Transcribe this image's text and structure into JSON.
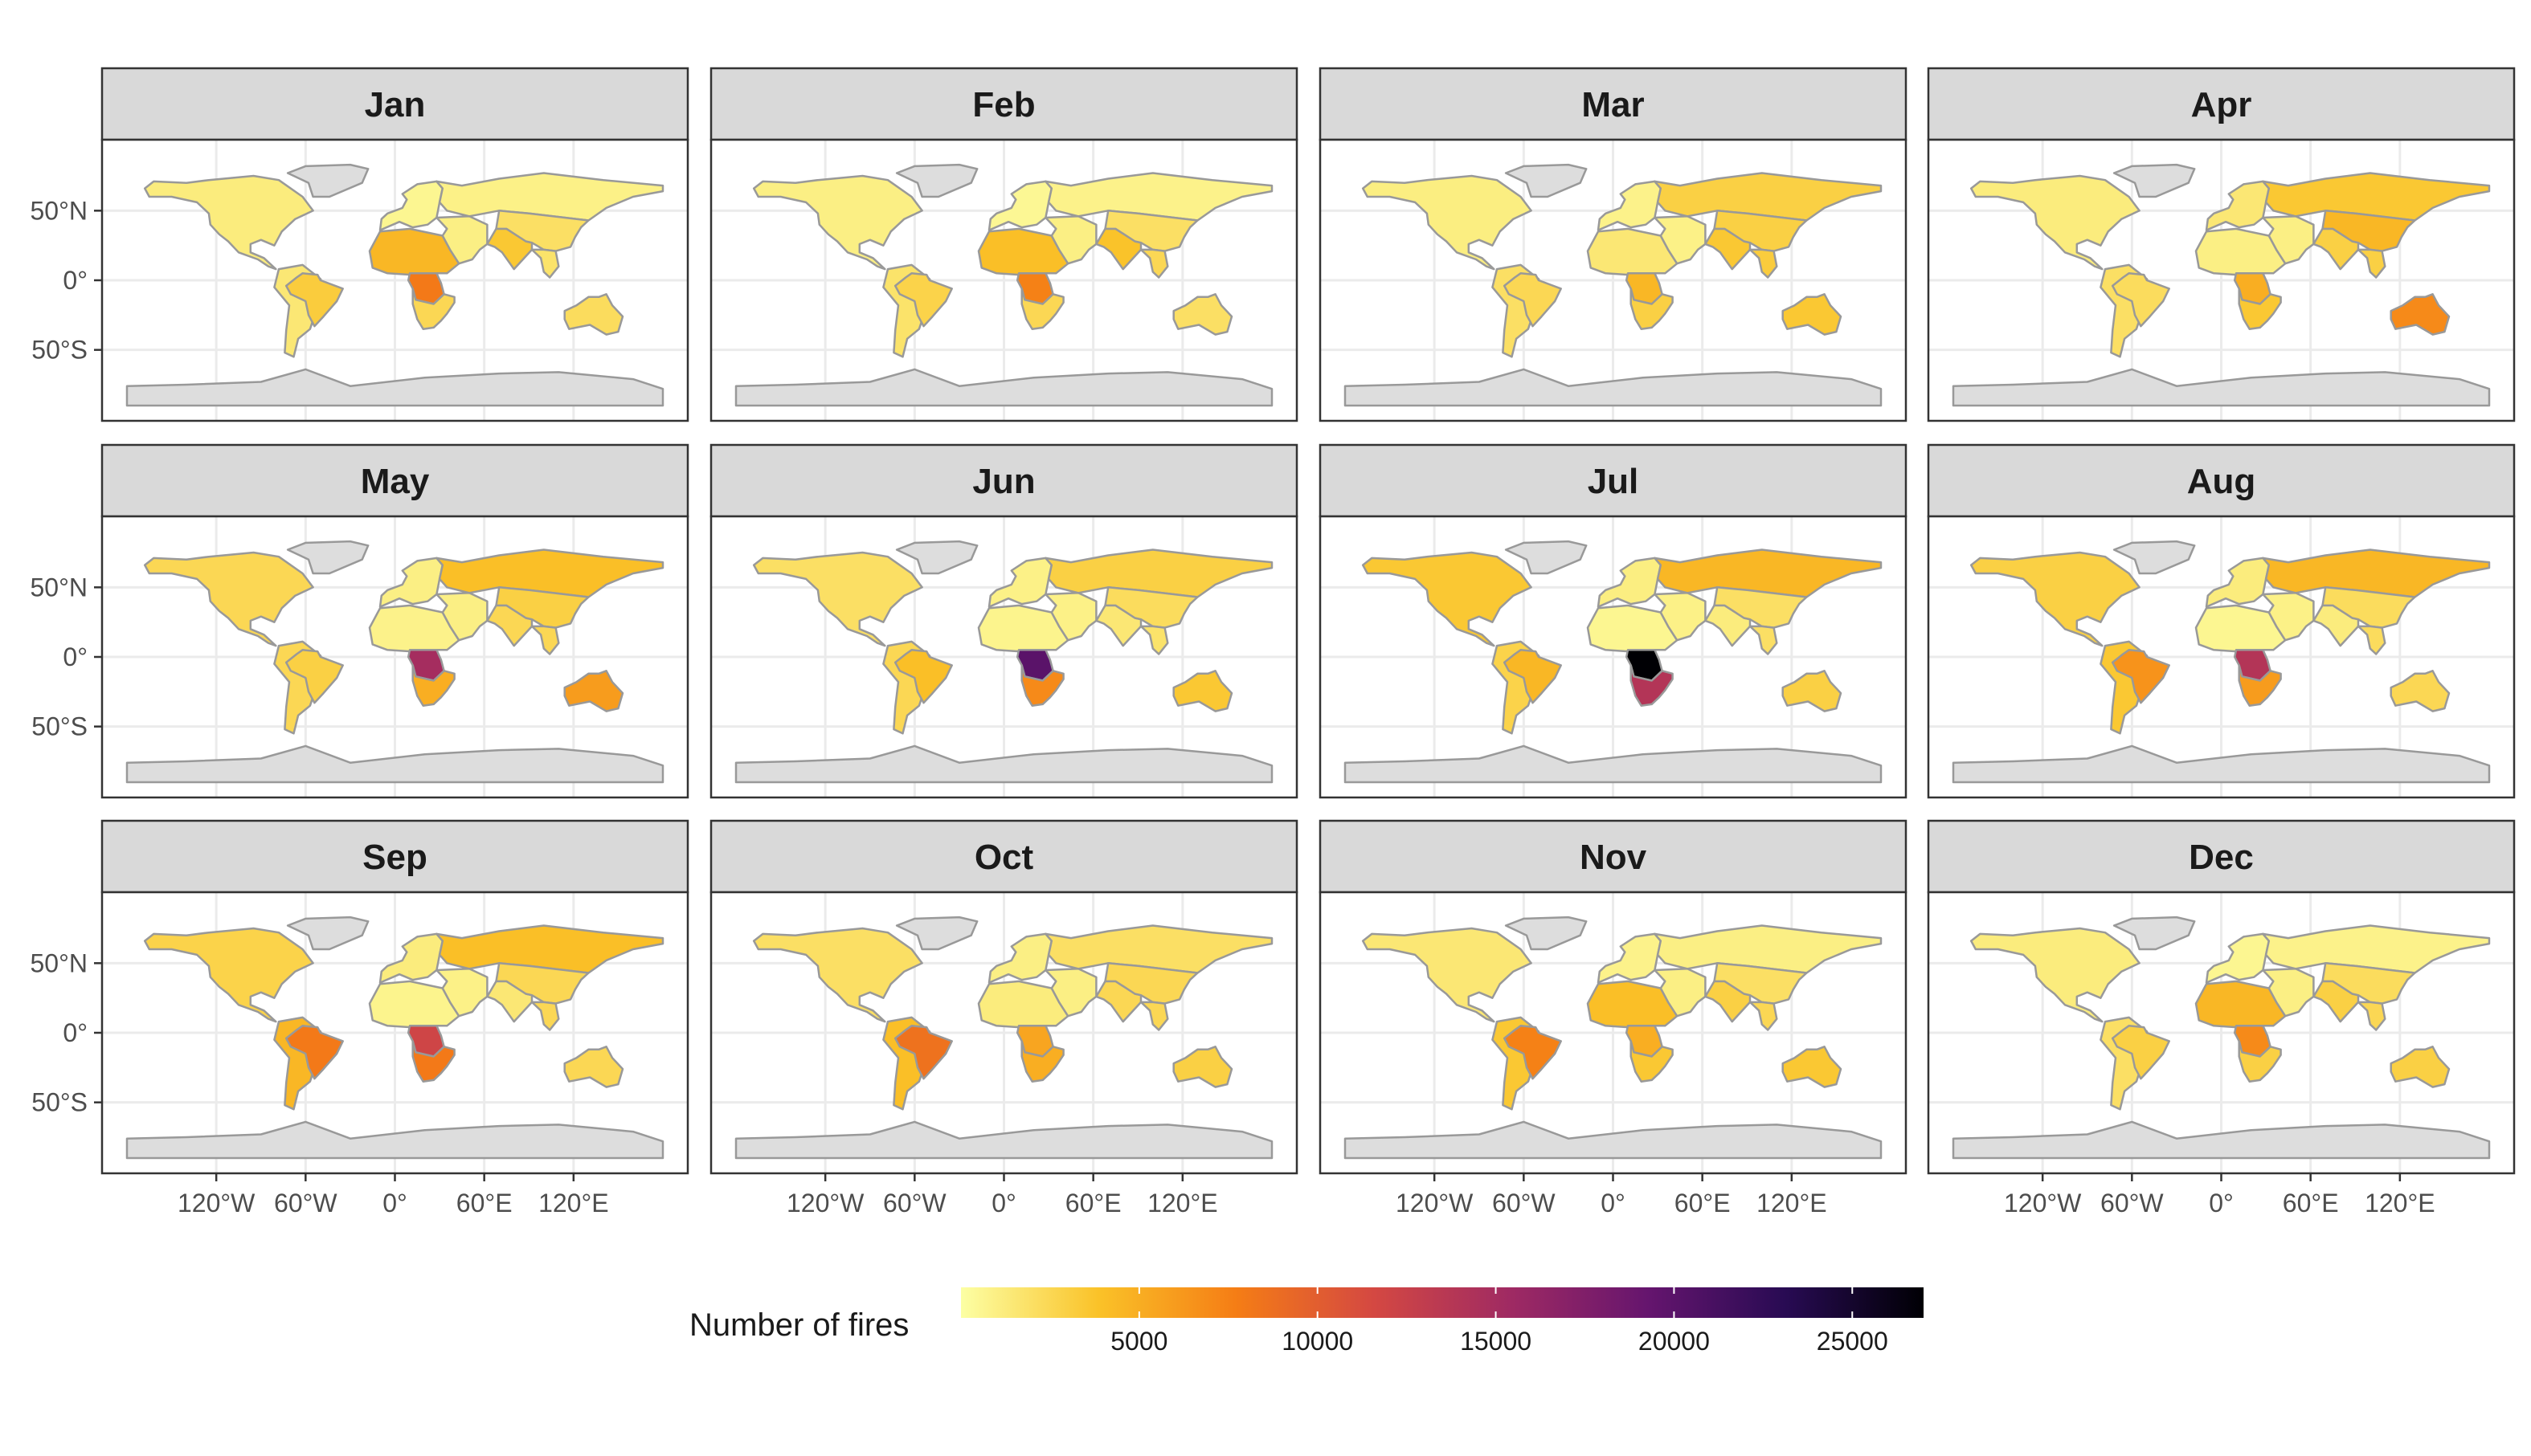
{
  "chart_data": {
    "type": "choropleth",
    "facet_by": "month",
    "facets": [
      "Jan",
      "Feb",
      "Mar",
      "Apr",
      "May",
      "Jun",
      "Jul",
      "Aug",
      "Sep",
      "Oct",
      "Nov",
      "Dec"
    ],
    "x_ticks": [
      {
        "value": -120,
        "label": "120°W"
      },
      {
        "value": -60,
        "label": "60°W"
      },
      {
        "value": 0,
        "label": "0°"
      },
      {
        "value": 60,
        "label": "60°E"
      },
      {
        "value": 120,
        "label": "120°E"
      }
    ],
    "y_ticks": [
      {
        "value": 50,
        "label": "50°N"
      },
      {
        "value": 0,
        "label": "0°"
      },
      {
        "value": -50,
        "label": "50°S"
      }
    ],
    "xlim": [
      -180,
      180
    ],
    "ylim": [
      -90,
      90
    ],
    "grid": true,
    "legend": {
      "title": "Number of fires",
      "placement": "bottom",
      "range": [
        0,
        27000
      ],
      "breaks": [
        5000,
        10000,
        15000,
        20000,
        25000
      ],
      "break_labels": [
        "5000",
        "10000",
        "15000",
        "20000",
        "25000"
      ],
      "palette": [
        "#fcffa4",
        "#fac228",
        "#f57d15",
        "#d44842",
        "#9f2a63",
        "#65156e",
        "#280b53",
        "#000004"
      ]
    },
    "no_data_color": "#dddddd",
    "series": [
      {
        "name": "Jan",
        "values": {
          "north_america": 1200,
          "greenland": null,
          "south_america": 1500,
          "brazil": 3200,
          "west_africa": 4500,
          "central_africa": 8000,
          "south_africa": 2500,
          "europe": 600,
          "russia": 900,
          "middle_east": 1000,
          "south_asia": 3500,
          "east_asia": 2000,
          "se_asia": 1800,
          "australia": 2200,
          "antarctica": null
        }
      },
      {
        "name": "Feb",
        "values": {
          "north_america": 1000,
          "greenland": null,
          "south_america": 1800,
          "brazil": 2800,
          "west_africa": 4000,
          "central_africa": 7500,
          "south_africa": 2500,
          "europe": 500,
          "russia": 800,
          "middle_east": 1000,
          "south_asia": 3800,
          "east_asia": 2000,
          "se_asia": 2500,
          "australia": 2000,
          "antarctica": null
        }
      },
      {
        "name": "Mar",
        "values": {
          "north_america": 1100,
          "greenland": null,
          "south_america": 2000,
          "brazil": 2500,
          "west_africa": 1500,
          "central_africa": 4500,
          "south_africa": 3000,
          "europe": 800,
          "russia": 3000,
          "middle_east": 900,
          "south_asia": 3500,
          "east_asia": 3000,
          "se_asia": 3200,
          "australia": 3500,
          "antarctica": null
        }
      },
      {
        "name": "Apr",
        "values": {
          "north_america": 1200,
          "greenland": null,
          "south_america": 2000,
          "brazil": 2200,
          "west_africa": 1000,
          "central_africa": 5000,
          "south_africa": 3500,
          "europe": 1500,
          "russia": 3500,
          "middle_east": 1000,
          "south_asia": 3000,
          "east_asia": 4500,
          "se_asia": 3000,
          "australia": 7000,
          "antarctica": null
        }
      },
      {
        "name": "May",
        "values": {
          "north_america": 2500,
          "greenland": null,
          "south_america": 2500,
          "brazil": 3000,
          "west_africa": 800,
          "central_africa": 15000,
          "south_africa": 5000,
          "europe": 1000,
          "russia": 4000,
          "middle_east": 1000,
          "south_asia": 2500,
          "east_asia": 3000,
          "se_asia": 2500,
          "australia": 6000,
          "antarctica": null
        }
      },
      {
        "name": "Jun",
        "values": {
          "north_america": 2000,
          "greenland": null,
          "south_america": 2500,
          "brazil": 4000,
          "west_africa": 700,
          "central_africa": 20000,
          "south_africa": 7000,
          "europe": 900,
          "russia": 3000,
          "middle_east": 900,
          "south_asia": 1500,
          "east_asia": 2200,
          "se_asia": 1800,
          "australia": 3500,
          "antarctica": null
        }
      },
      {
        "name": "Jul",
        "values": {
          "north_america": 3500,
          "greenland": null,
          "south_america": 2800,
          "brazil": 4500,
          "west_africa": 600,
          "central_africa": 27000,
          "south_africa": 14000,
          "europe": 1100,
          "russia": 4500,
          "middle_east": 900,
          "south_asia": 1200,
          "east_asia": 2000,
          "se_asia": 2000,
          "australia": 3000,
          "antarctica": null
        }
      },
      {
        "name": "Aug",
        "values": {
          "north_america": 3000,
          "greenland": null,
          "south_america": 3500,
          "brazil": 6500,
          "west_africa": 600,
          "central_africa": 14000,
          "south_africa": 6000,
          "europe": 1200,
          "russia": 4500,
          "middle_east": 900,
          "south_asia": 1200,
          "east_asia": 2200,
          "se_asia": 2200,
          "australia": 2500,
          "antarctica": null
        }
      },
      {
        "name": "Sep",
        "values": {
          "north_america": 2800,
          "greenland": null,
          "south_america": 4500,
          "brazil": 8000,
          "west_africa": 700,
          "central_africa": 12000,
          "south_africa": 8000,
          "europe": 1200,
          "russia": 4000,
          "middle_east": 900,
          "south_asia": 1500,
          "east_asia": 2500,
          "se_asia": 2500,
          "australia": 2500,
          "antarctica": null
        }
      },
      {
        "name": "Oct",
        "values": {
          "north_america": 2000,
          "greenland": null,
          "south_america": 4000,
          "brazil": 8500,
          "west_africa": 1200,
          "central_africa": 5500,
          "south_africa": 5000,
          "europe": 1000,
          "russia": 2000,
          "middle_east": 1000,
          "south_asia": 2500,
          "east_asia": 2500,
          "se_asia": 2500,
          "australia": 3000,
          "antarctica": null
        }
      },
      {
        "name": "Nov",
        "values": {
          "north_america": 1500,
          "greenland": null,
          "south_america": 3500,
          "brazil": 7500,
          "west_africa": 4000,
          "central_africa": 5000,
          "south_africa": 3500,
          "europe": 800,
          "russia": 1000,
          "middle_east": 1000,
          "south_asia": 3000,
          "east_asia": 2000,
          "se_asia": 2500,
          "australia": 3500,
          "antarctica": null
        }
      },
      {
        "name": "Dec",
        "values": {
          "north_america": 1200,
          "greenland": null,
          "south_america": 2000,
          "brazil": 3000,
          "west_africa": 4500,
          "central_africa": 7000,
          "south_africa": 3000,
          "europe": 600,
          "russia": 800,
          "middle_east": 1000,
          "south_asia": 3000,
          "east_asia": 2200,
          "se_asia": 2500,
          "australia": 3000,
          "antarctica": null
        }
      }
    ]
  }
}
